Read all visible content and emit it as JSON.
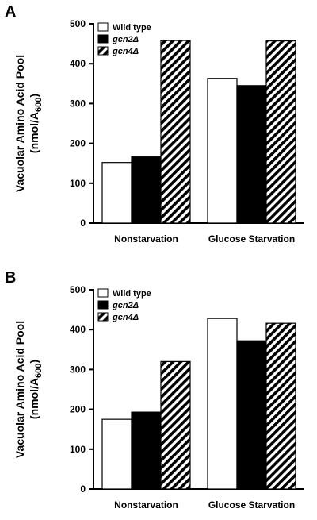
{
  "panels": [
    {
      "letter": "A",
      "chart_data": {
        "type": "bar",
        "categories": [
          "Nonstarvation",
          "Glucose Starvation"
        ],
        "series": [
          {
            "name": "Wild type",
            "values": [
              152,
              363
            ],
            "pattern": "open"
          },
          {
            "name": "gcn2Δ",
            "values": [
              166,
              345
            ],
            "pattern": "solid"
          },
          {
            "name": "gcn4Δ",
            "values": [
              458,
              457
            ],
            "pattern": "hatched"
          }
        ],
        "ylabel_line1": "Vacuolar Amino Acid Pool",
        "ylabel_line2_prefix": "(nmol/A",
        "ylabel_line2_sub": "600",
        "ylabel_line2_suffix": ")",
        "ylim": [
          0,
          500
        ],
        "yticks": [
          0,
          100,
          200,
          300,
          400,
          500
        ],
        "legend_position": "top-left",
        "grid": false
      }
    },
    {
      "letter": "B",
      "chart_data": {
        "type": "bar",
        "categories": [
          "Nonstarvation",
          "Glucose Starvation"
        ],
        "series": [
          {
            "name": "Wild type",
            "values": [
              175,
              428
            ],
            "pattern": "open"
          },
          {
            "name": "gcn2Δ",
            "values": [
              193,
              372
            ],
            "pattern": "solid"
          },
          {
            "name": "gcn4Δ",
            "values": [
              320,
              416
            ],
            "pattern": "hatched"
          }
        ],
        "ylabel_line1": "Vacuolar Amino Acid Pool",
        "ylabel_line2_prefix": "(nmol/A",
        "ylabel_line2_sub": "600",
        "ylabel_line2_suffix": ")",
        "ylim": [
          0,
          500
        ],
        "yticks": [
          0,
          100,
          200,
          300,
          400,
          500
        ],
        "legend_position": "top-left",
        "grid": false
      }
    }
  ]
}
